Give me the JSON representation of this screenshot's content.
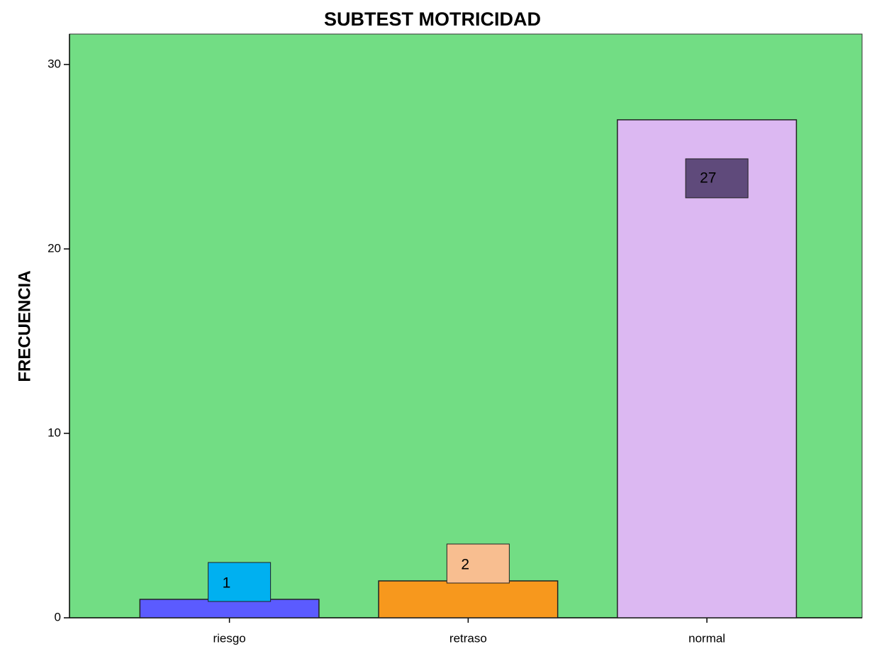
{
  "chart_data": {
    "type": "bar",
    "title": "SUBTEST MOTRICIDAD",
    "y_label": "FRECUENCIA",
    "categories": [
      "riesgo",
      "retraso",
      "normal"
    ],
    "values": [
      1,
      2,
      27
    ],
    "colors": [
      "#5b5bff",
      "#f7981d",
      "#dcb8f2"
    ],
    "label_colors": [
      "#00b0f0",
      "#f8be90",
      "#5f4a7b"
    ],
    "background": "#72dd84",
    "ylim": [
      0,
      31.65
    ],
    "yticks": [
      0,
      10,
      20,
      30
    ],
    "grid": false
  }
}
